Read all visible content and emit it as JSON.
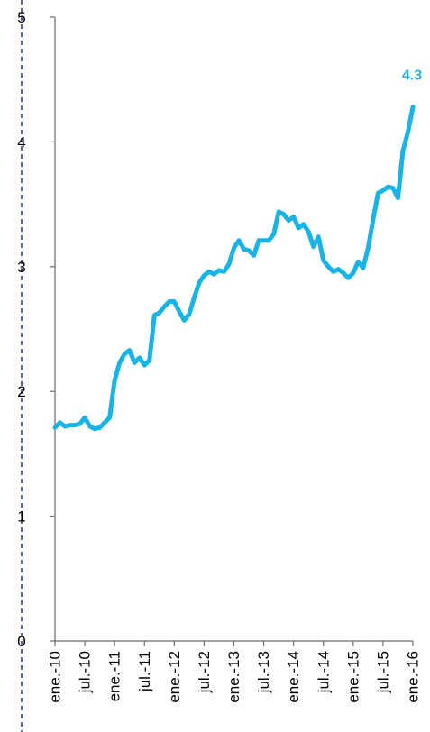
{
  "chart_data": {
    "type": "line",
    "title": "",
    "xlabel": "",
    "ylabel": "",
    "ylim": [
      0,
      5
    ],
    "y_ticks": [
      "0",
      "1",
      "2",
      "3",
      "4",
      "5"
    ],
    "x_tick_labels": [
      "ene.-10",
      "jul.-10",
      "ene.-11",
      "jul.-11",
      "ene.-12",
      "jul.-12",
      "ene.-13",
      "jul.-13",
      "ene.-14",
      "jul.-14",
      "ene.-15",
      "jul.-15",
      "ene.-16"
    ],
    "grid": false,
    "legend": "none",
    "end_label": "4.3",
    "series_color": "#19b3e6",
    "series": [
      {
        "values": [
          1.71,
          1.75,
          1.72,
          1.73,
          1.73,
          1.74,
          1.79,
          1.72,
          1.7,
          1.71,
          1.75,
          1.79,
          2.09,
          2.23,
          2.3,
          2.33,
          2.23,
          2.27,
          2.21,
          2.25,
          2.61,
          2.63,
          2.68,
          2.72,
          2.72,
          2.64,
          2.57,
          2.62,
          2.75,
          2.87,
          2.93,
          2.96,
          2.94,
          2.97,
          2.96,
          3.02,
          3.15,
          3.21,
          3.14,
          3.13,
          3.09,
          3.21,
          3.21,
          3.21,
          3.26,
          3.44,
          3.42,
          3.37,
          3.4,
          3.31,
          3.34,
          3.28,
          3.16,
          3.24,
          3.05,
          3.0,
          2.96,
          2.98,
          2.95,
          2.91,
          2.95,
          3.04,
          2.99,
          3.15,
          3.38,
          3.59,
          3.61,
          3.64,
          3.63,
          3.55,
          3.93,
          4.08,
          4.28
        ]
      }
    ]
  }
}
